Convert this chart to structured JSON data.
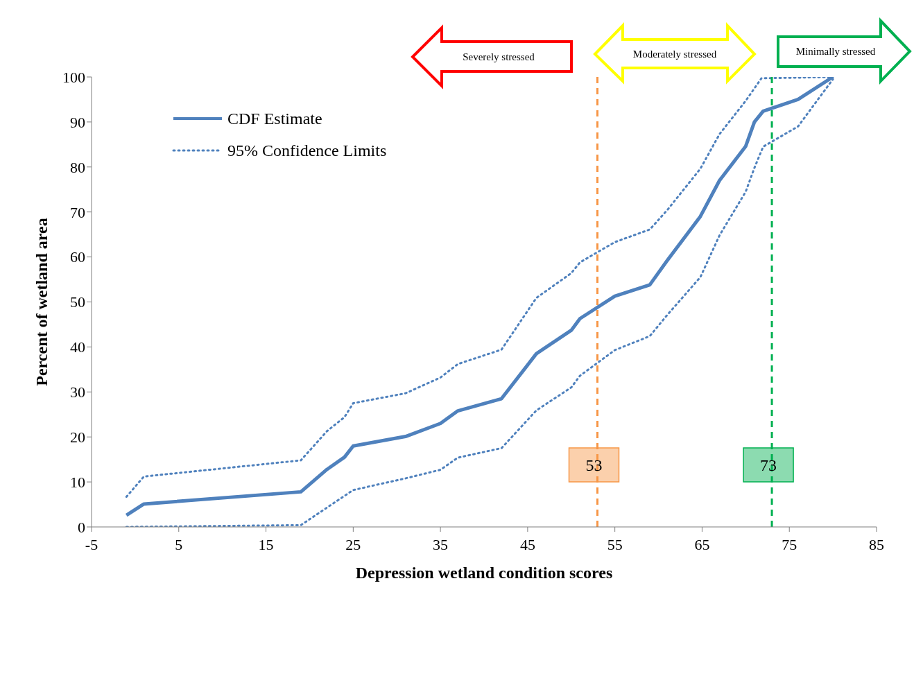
{
  "chart_data": {
    "type": "line",
    "xlabel": "Depression wetland condition scores",
    "ylabel": "Percent of wetland area",
    "xlim": [
      -5,
      85
    ],
    "xticks": [
      -5,
      5,
      15,
      25,
      35,
      45,
      55,
      65,
      75,
      85
    ],
    "ylim": [
      0,
      100
    ],
    "yticks": [
      0,
      10,
      20,
      30,
      40,
      50,
      60,
      70,
      80,
      90,
      100
    ],
    "legend": "top left",
    "marker": "none",
    "series": [
      {
        "name": "CDF Estimate",
        "color": "#4f81bd",
        "line_style": "solid",
        "x": [
          -1,
          1,
          19,
          22,
          24,
          25,
          31,
          35,
          37,
          42,
          46,
          50,
          51,
          55,
          59,
          61,
          64.8,
          67,
          70,
          71,
          72,
          76,
          80
        ],
        "values": [
          2.6,
          5.1,
          7.8,
          12.8,
          15.5,
          18,
          20.1,
          23,
          25.8,
          28.5,
          38.5,
          43.7,
          46.3,
          51.3,
          53.8,
          59.2,
          69,
          77,
          84.6,
          90,
          92.4,
          95,
          100
        ]
      },
      {
        "name": "95% Confidence Limits",
        "color": "#4f81bd",
        "line_style": "dotted",
        "x": [
          -1,
          1,
          19,
          22,
          24,
          25,
          31,
          35,
          37,
          42,
          46,
          50,
          51,
          55,
          59,
          61,
          64.8,
          67,
          70,
          71.8,
          80
        ],
        "values": [
          6.7,
          11.2,
          14.8,
          21.3,
          24.4,
          27.5,
          29.7,
          33.2,
          36.2,
          39.4,
          50.9,
          56.4,
          58.8,
          63.3,
          66.1,
          70.4,
          79.6,
          87.3,
          94.7,
          99.7,
          100
        ]
      },
      {
        "color": "#4f81bd",
        "line_style": "dotted",
        "x": [
          -1,
          19,
          22,
          25,
          31,
          35,
          37,
          42,
          46,
          50,
          51,
          55,
          59,
          61,
          64.8,
          67,
          70,
          71,
          72,
          76,
          80
        ],
        "values": [
          0,
          0.4,
          4.3,
          8.2,
          10.8,
          12.7,
          15.4,
          17.5,
          25.9,
          31,
          33.6,
          39.3,
          42.4,
          47.1,
          55.5,
          64.8,
          74.5,
          79.8,
          84.5,
          89,
          99.5
        ]
      }
    ],
    "ref_lines": [
      {
        "axis": "x",
        "value": 53,
        "label": "53",
        "color": "#f79646",
        "line_style": "dashed"
      },
      {
        "axis": "x",
        "value": 73,
        "label": "73",
        "color": "#00b050",
        "line_style": "dashed"
      }
    ],
    "annotations": [
      "Severely stressed",
      "Moderately stressed",
      "Minimally stressed"
    ]
  }
}
